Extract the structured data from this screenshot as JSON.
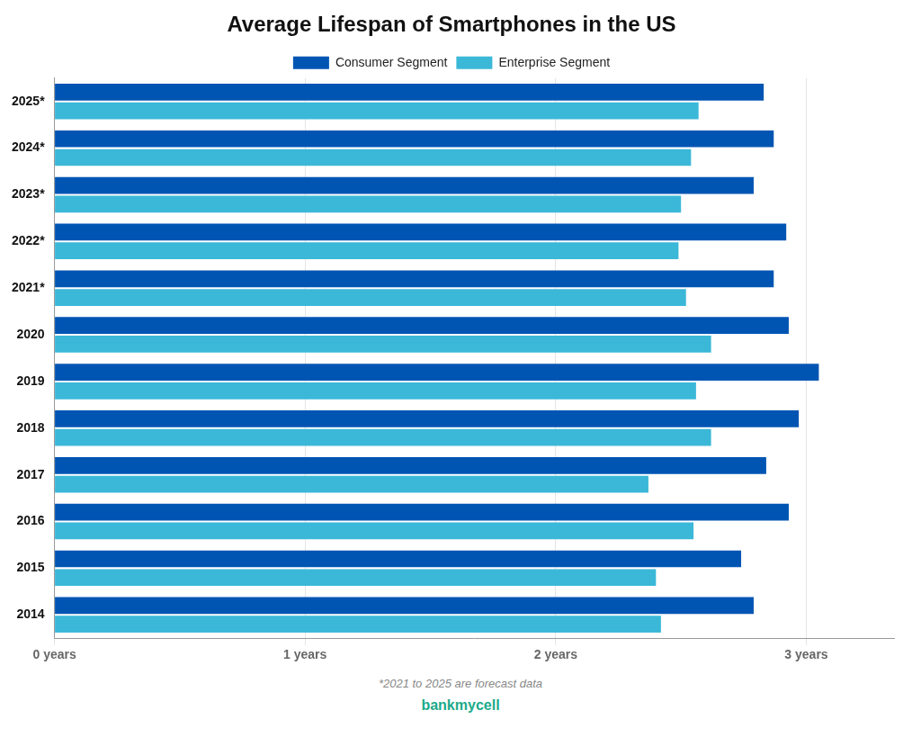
{
  "chart_data": {
    "type": "bar",
    "orientation": "horizontal",
    "title": "Average Lifespan of Smartphones in the US",
    "categories": [
      "2025*",
      "2024*",
      "2023*",
      "2022*",
      "2021*",
      "2020",
      "2019",
      "2018",
      "2017",
      "2016",
      "2015",
      "2014"
    ],
    "series": [
      {
        "name": "Consumer Segment",
        "color": "#0055B3",
        "values": [
          2.83,
          2.87,
          2.79,
          2.92,
          2.87,
          2.93,
          3.05,
          2.97,
          2.84,
          2.93,
          2.74,
          2.79
        ]
      },
      {
        "name": "Enterprise Segment",
        "color": "#3BB8D8",
        "values": [
          2.57,
          2.54,
          2.5,
          2.49,
          2.52,
          2.62,
          2.56,
          2.62,
          2.37,
          2.55,
          2.4,
          2.42
        ]
      }
    ],
    "xlim": [
      0,
      3.35
    ],
    "xticks": [
      {
        "value": 0,
        "label": "0 years"
      },
      {
        "value": 1,
        "label": "1 years"
      },
      {
        "value": 2,
        "label": "2 years"
      },
      {
        "value": 3,
        "label": "3 years"
      }
    ],
    "grid": true,
    "legend": "top",
    "annotations": [
      "*2021 to 2025 are forecast data",
      "bankmycell"
    ]
  }
}
